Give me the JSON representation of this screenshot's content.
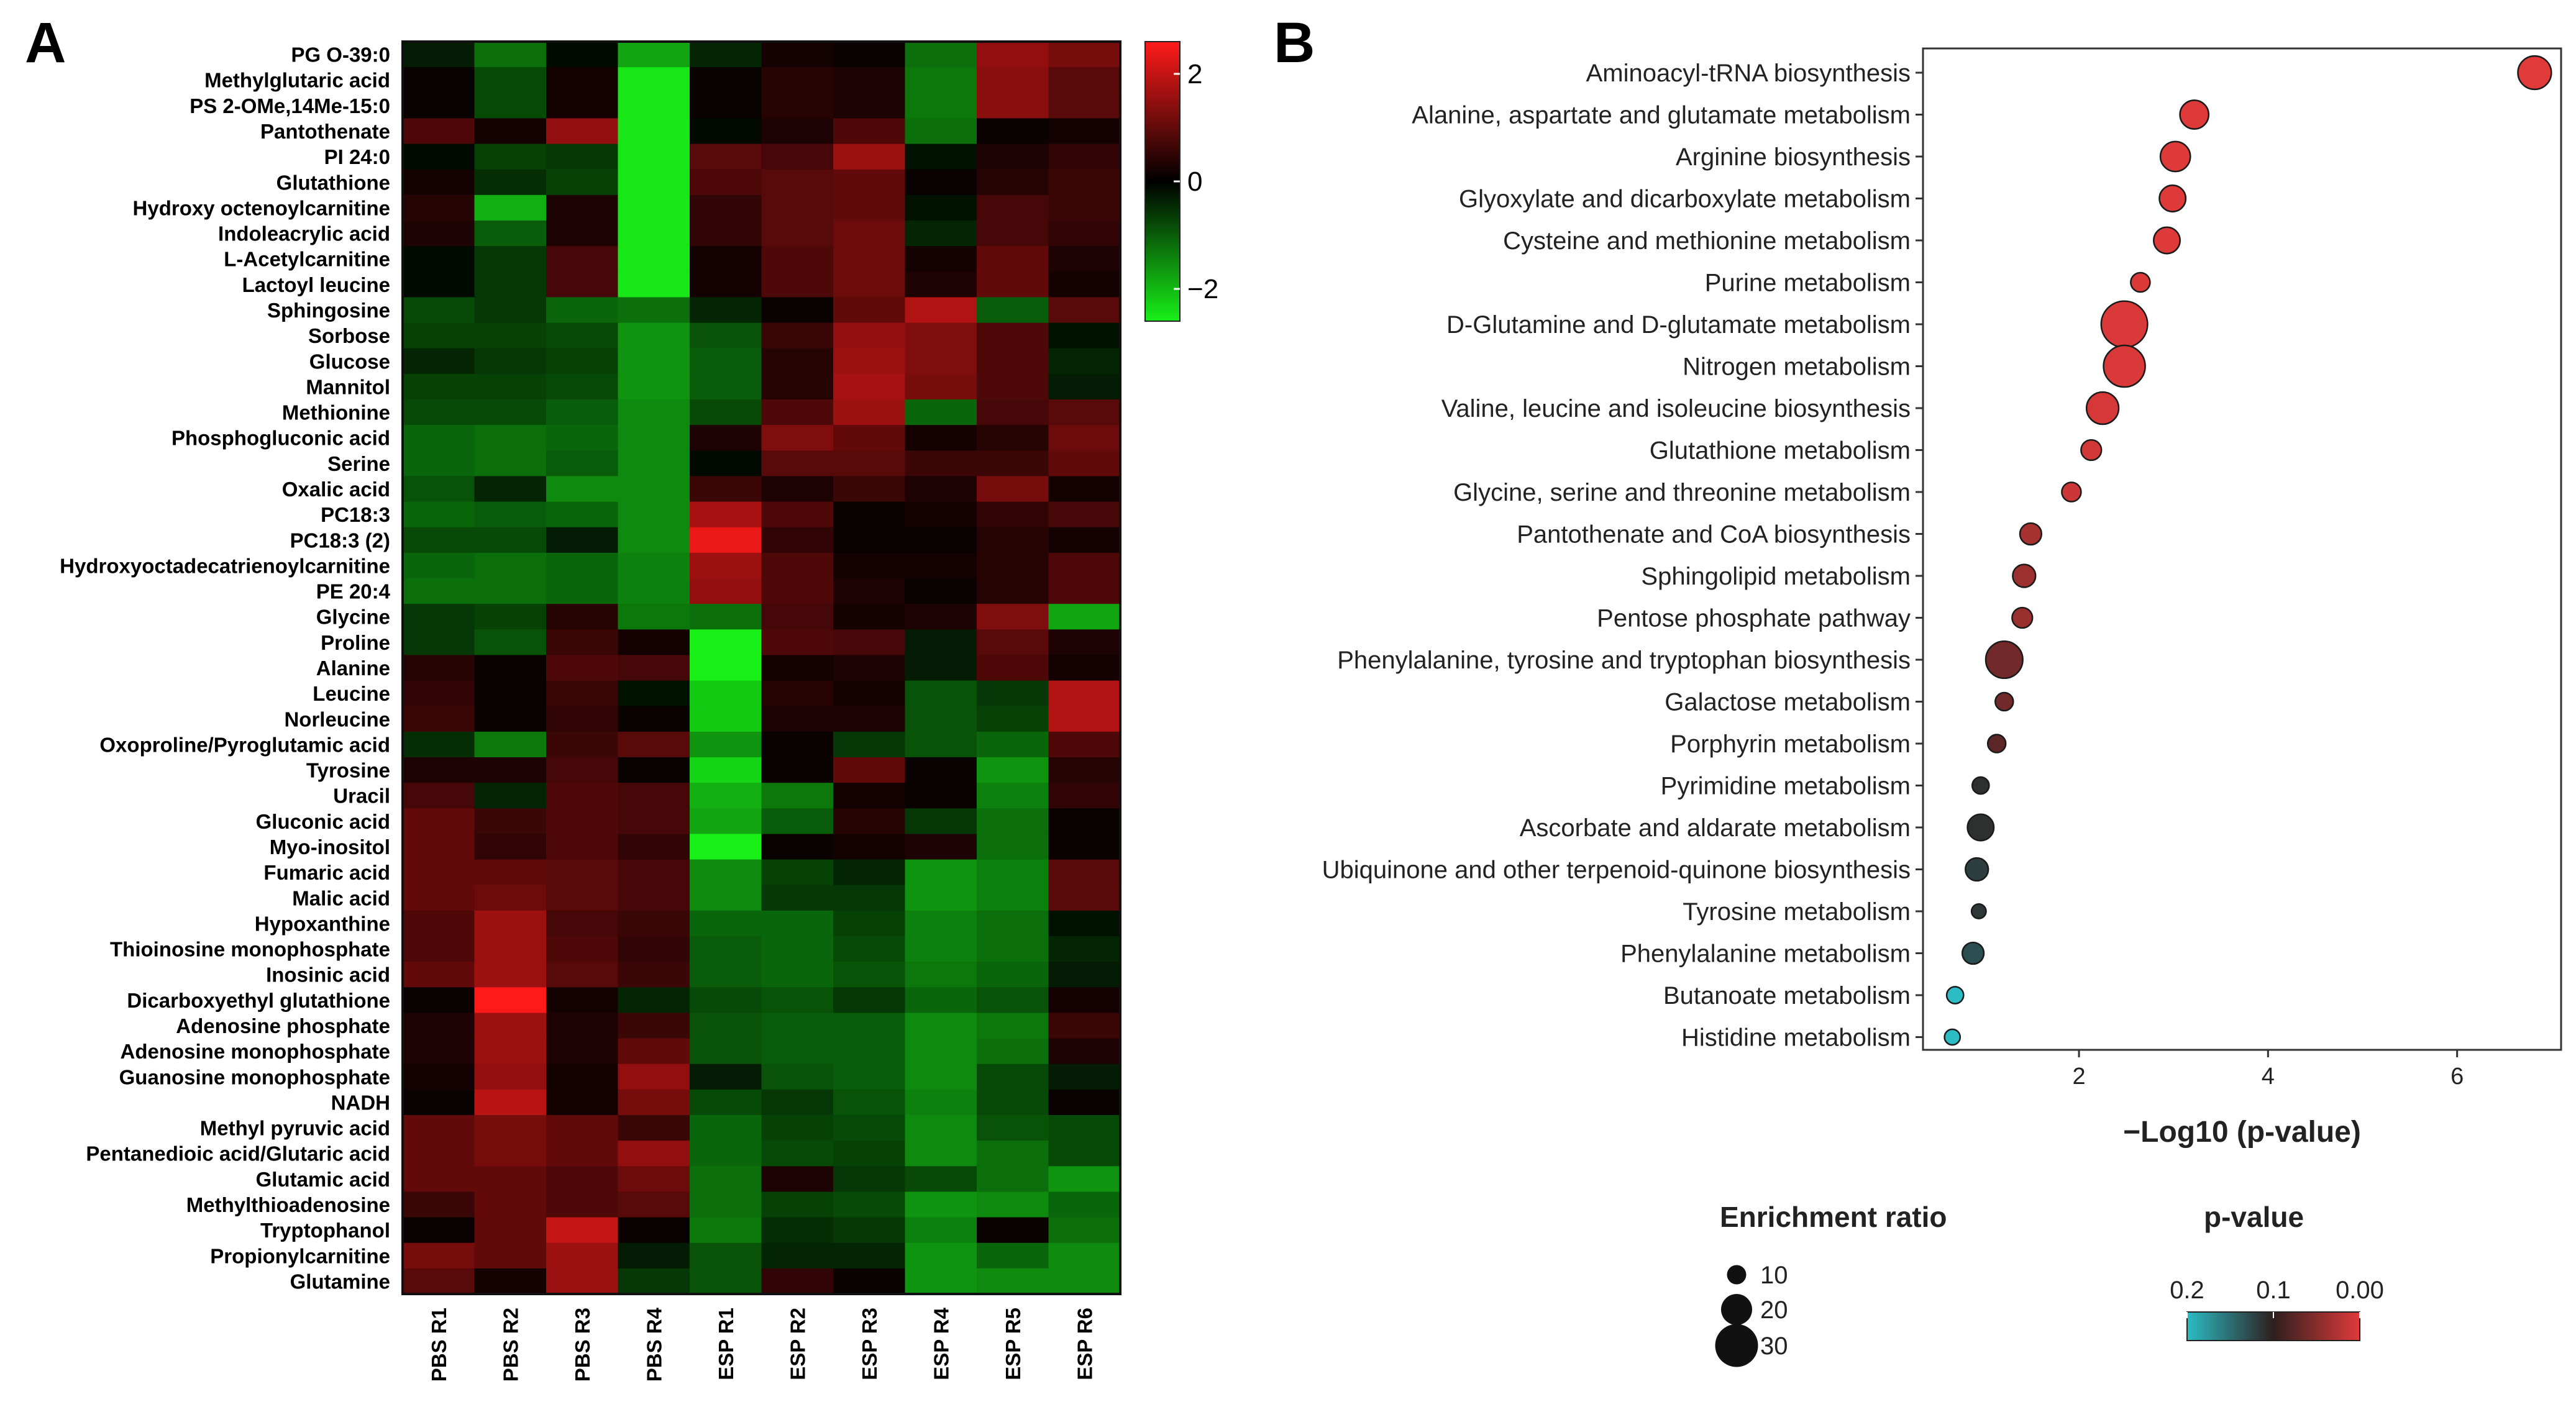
{
  "panels": {
    "a_letter": "A",
    "b_letter": "B"
  },
  "chart_data": [
    {
      "type": "heatmap",
      "title": "",
      "columns": [
        "PBS R1",
        "PBS R2",
        "PBS R3",
        "PBS R4",
        "ESP R1",
        "ESP R2",
        "ESP R3",
        "ESP R4",
        "ESP R5",
        "ESP R6"
      ],
      "rows": [
        "PG O-39:0",
        "Methylglutaric acid",
        "PS 2-OMe,14Me-15:0",
        "Pantothenate",
        "PI 24:0",
        "Glutathione",
        "Hydroxy octenoylcarnitine",
        "Indoleacrylic acid",
        "L-Acetylcarnitine",
        "Lactoyl leucine",
        "Sphingosine",
        "Sorbose",
        "Glucose",
        "Mannitol",
        "Methionine",
        "Phosphogluconic acid",
        "Serine",
        "Oxalic acid",
        "PC18:3",
        "PC18:3 (2)",
        "Hydroxyoctadecatrienoylcarnitine",
        "PE 20:4",
        "Glycine",
        "Proline",
        "Alanine",
        "Leucine",
        "Norleucine",
        "Oxoproline/Pyroglutamic acid",
        "Tyrosine",
        "Uracil",
        "Gluconic acid",
        "Myo-inositol",
        "Fumaric acid",
        "Malic acid",
        "Hypoxanthine",
        "Thioinosine monophosphate",
        "Inosinic acid",
        "Dicarboxyethyl glutathione",
        "Adenosine phosphate",
        "Adenosine monophosphate",
        "Guanosine monophosphate",
        "NADH",
        "Methyl pyruvic acid",
        "Pentanedioic acid/Glutaric acid",
        "Glutamic acid",
        "Methylthioadenosine",
        "Tryptophanol",
        "Propionylcarnitine",
        "Glutamine"
      ],
      "values": [
        [
          -0.3,
          -1.2,
          -0.1,
          -1.8,
          -0.4,
          0.2,
          0.1,
          -1.2,
          1.5,
          1.2
        ],
        [
          0.1,
          -0.8,
          0.2,
          -2.5,
          0.1,
          0.4,
          0.3,
          -1.3,
          1.4,
          0.9
        ],
        [
          0.1,
          -0.8,
          0.2,
          -2.5,
          0.1,
          0.4,
          0.3,
          -1.3,
          1.4,
          0.9
        ],
        [
          0.8,
          0.2,
          1.5,
          -2.5,
          -0.1,
          0.3,
          0.8,
          -1.2,
          0.1,
          0.2
        ],
        [
          -0.1,
          -0.7,
          -0.6,
          -2.5,
          0.9,
          0.7,
          1.6,
          -0.2,
          0.3,
          0.5
        ],
        [
          0.2,
          -0.5,
          -0.7,
          -2.5,
          0.8,
          0.9,
          1.0,
          0.1,
          0.4,
          0.6
        ],
        [
          0.4,
          -1.9,
          0.3,
          -2.5,
          0.5,
          0.9,
          1.0,
          -0.2,
          0.7,
          0.6
        ],
        [
          0.3,
          -1.0,
          0.3,
          -2.5,
          0.5,
          0.9,
          1.1,
          -0.4,
          0.7,
          0.5
        ],
        [
          -0.1,
          -0.6,
          0.7,
          -2.5,
          0.2,
          0.8,
          1.1,
          0.2,
          1.0,
          0.3
        ],
        [
          -0.1,
          -0.6,
          0.7,
          -2.5,
          0.2,
          0.8,
          1.1,
          0.3,
          1.0,
          0.2
        ],
        [
          -0.8,
          -0.6,
          -1.1,
          -1.2,
          -0.4,
          0.1,
          1.0,
          1.8,
          -1.0,
          0.9
        ],
        [
          -0.7,
          -0.7,
          -0.8,
          -1.6,
          -0.9,
          0.6,
          1.5,
          1.3,
          0.8,
          -0.2
        ],
        [
          -0.4,
          -0.6,
          -0.7,
          -1.6,
          -1.0,
          0.4,
          1.6,
          1.3,
          0.8,
          -0.4
        ],
        [
          -0.7,
          -0.7,
          -0.8,
          -1.6,
          -1.0,
          0.4,
          1.7,
          1.2,
          0.8,
          -0.3
        ],
        [
          -0.8,
          -0.8,
          -1.0,
          -1.5,
          -0.8,
          0.8,
          1.6,
          -1.1,
          0.7,
          0.9
        ],
        [
          -1.1,
          -1.2,
          -1.1,
          -1.5,
          0.3,
          1.3,
          1.0,
          0.2,
          0.4,
          1.1
        ],
        [
          -1.1,
          -1.2,
          -1.0,
          -1.5,
          -0.1,
          0.9,
          0.9,
          0.6,
          0.6,
          1.0
        ],
        [
          -0.9,
          -0.4,
          -1.5,
          -1.5,
          0.6,
          0.3,
          0.6,
          0.3,
          1.2,
          0.2
        ],
        [
          -1.1,
          -1.0,
          -1.1,
          -1.5,
          1.7,
          0.8,
          0.1,
          0.2,
          0.5,
          0.7
        ],
        [
          -0.8,
          -0.8,
          -0.3,
          -1.5,
          2.4,
          0.5,
          0.1,
          0.1,
          0.4,
          0.2
        ],
        [
          -1.1,
          -1.2,
          -1.1,
          -1.4,
          1.6,
          0.8,
          0.2,
          0.2,
          0.4,
          0.8
        ],
        [
          -1.2,
          -1.2,
          -1.1,
          -1.4,
          1.5,
          0.8,
          0.3,
          0.1,
          0.4,
          0.8
        ],
        [
          -0.6,
          -0.7,
          0.4,
          -1.3,
          -1.2,
          0.7,
          0.2,
          0.3,
          1.3,
          -1.8
        ],
        [
          -0.6,
          -0.9,
          0.6,
          0.2,
          -2.6,
          0.8,
          0.7,
          -0.3,
          0.9,
          0.3
        ],
        [
          0.4,
          0.1,
          0.8,
          0.7,
          -2.6,
          0.2,
          0.3,
          -0.3,
          0.8,
          0.2
        ],
        [
          0.5,
          0.1,
          0.6,
          -0.2,
          -2.2,
          0.4,
          0.2,
          -0.9,
          -0.6,
          1.8
        ],
        [
          0.6,
          0.1,
          0.5,
          0.1,
          -2.2,
          0.3,
          0.3,
          -0.9,
          -0.7,
          1.8
        ],
        [
          -0.5,
          -1.3,
          0.6,
          0.9,
          -1.6,
          0.1,
          -0.6,
          -0.9,
          -1.1,
          0.8
        ],
        [
          0.3,
          0.3,
          0.7,
          0.1,
          -2.3,
          0.1,
          1.0,
          0.1,
          -1.6,
          0.4
        ],
        [
          0.7,
          -0.4,
          0.8,
          0.7,
          -1.9,
          -1.3,
          0.2,
          0.1,
          -1.4,
          0.5
        ],
        [
          1.0,
          0.6,
          0.8,
          0.7,
          -1.8,
          -1.0,
          0.4,
          -0.6,
          -1.2,
          0.1
        ],
        [
          1.0,
          0.5,
          0.8,
          0.5,
          -2.6,
          0.1,
          0.2,
          0.3,
          -1.2,
          0.1
        ],
        [
          1.0,
          1.0,
          0.9,
          0.7,
          -1.5,
          -0.7,
          -0.4,
          -1.6,
          -1.4,
          0.9
        ],
        [
          1.0,
          1.1,
          0.9,
          0.7,
          -1.5,
          -0.6,
          -0.6,
          -1.6,
          -1.4,
          0.9
        ],
        [
          0.8,
          1.6,
          0.7,
          0.6,
          -1.1,
          -1.1,
          -0.7,
          -1.4,
          -1.2,
          -0.2
        ],
        [
          0.8,
          1.6,
          0.8,
          0.5,
          -1.0,
          -1.1,
          -0.8,
          -1.4,
          -1.2,
          -0.4
        ],
        [
          1.0,
          1.6,
          0.9,
          0.6,
          -1.0,
          -1.1,
          -0.9,
          -1.3,
          -1.1,
          -0.3
        ],
        [
          0.1,
          2.6,
          0.2,
          -0.4,
          -0.8,
          -0.9,
          -0.6,
          -1.1,
          -0.9,
          0.2
        ],
        [
          0.3,
          1.6,
          0.3,
          0.6,
          -0.9,
          -1.0,
          -1.0,
          -1.5,
          -1.3,
          0.6
        ],
        [
          0.3,
          1.6,
          0.3,
          1.0,
          -0.9,
          -1.0,
          -1.0,
          -1.5,
          -1.2,
          0.3
        ],
        [
          0.2,
          1.5,
          0.2,
          1.5,
          -0.3,
          -0.9,
          -1.0,
          -1.5,
          -0.8,
          -0.3
        ],
        [
          0.1,
          1.9,
          0.2,
          1.2,
          -0.8,
          -0.6,
          -0.9,
          -1.4,
          -0.8,
          0.1
        ],
        [
          1.0,
          1.2,
          1.0,
          0.6,
          -1.1,
          -0.7,
          -0.8,
          -1.5,
          -0.9,
          -0.8
        ],
        [
          1.0,
          1.2,
          1.0,
          1.5,
          -1.1,
          -0.8,
          -0.7,
          -1.5,
          -1.2,
          -0.8
        ],
        [
          1.0,
          1.0,
          0.8,
          1.1,
          -1.2,
          0.3,
          -0.6,
          -0.8,
          -1.2,
          -1.6
        ],
        [
          0.6,
          1.0,
          0.8,
          0.9,
          -1.2,
          -0.7,
          -0.8,
          -1.6,
          -1.5,
          -1.1
        ],
        [
          0.1,
          1.0,
          2.0,
          0.1,
          -1.3,
          -0.5,
          -0.6,
          -1.4,
          0.1,
          -1.2
        ],
        [
          1.2,
          1.0,
          1.6,
          -0.3,
          -0.9,
          -0.4,
          -0.4,
          -1.6,
          -1.1,
          -1.5
        ],
        [
          0.9,
          0.2,
          1.6,
          -0.6,
          -0.9,
          0.5,
          0.1,
          -1.6,
          -1.5,
          -1.5
        ]
      ],
      "color_scale": {
        "min": -2.6,
        "max": 2.6,
        "ticks": [
          2,
          0,
          -2
        ],
        "tick_labels": [
          "2",
          "0",
          "−2"
        ],
        "low_color": "#18f018",
        "mid_color": "#000000",
        "high_color": "#ff1a1a"
      }
    },
    {
      "type": "scatter",
      "title": "",
      "xlabel": "−Log10 (p-value)",
      "ylabel": "",
      "xlim": [
        0.35,
        7.1
      ],
      "x_ticks": [
        2,
        4,
        6
      ],
      "x_tick_labels": [
        "2",
        "4",
        "6"
      ],
      "categories": [
        "Aminoacyl-tRNA biosynthesis",
        "Alanine, aspartate and glutamate metabolism",
        "Arginine biosynthesis",
        "Glyoxylate and dicarboxylate metabolism",
        "Cysteine and methionine metabolism",
        "Purine metabolism",
        "D-Glutamine and D-glutamate metabolism",
        "Nitrogen metabolism",
        "Valine, leucine and isoleucine biosynthesis",
        "Glutathione metabolism",
        "Glycine, serine and threonine metabolism",
        "Pantothenate and CoA biosynthesis",
        "Sphingolipid metabolism",
        "Pentose phosphate pathway",
        "Phenylalanine, tyrosine and tryptophan biosynthesis",
        "Galactose metabolism",
        "Porphyrin  metabolism",
        "Pyrimidine metabolism",
        "Ascorbate and aldarate metabolism",
        "Ubiquinone and other terpenoid-quinone biosynthesis",
        "Tyrosine metabolism",
        "Phenylalanine metabolism",
        "Butanoate metabolism",
        "Histidine metabolism"
      ],
      "x": [
        6.82,
        3.22,
        3.02,
        2.99,
        2.93,
        2.65,
        2.48,
        2.48,
        2.25,
        2.13,
        1.92,
        1.49,
        1.42,
        1.4,
        1.21,
        1.21,
        1.13,
        0.96,
        0.96,
        0.92,
        0.94,
        0.88,
        0.69,
        0.66
      ],
      "enrichment_ratio": [
        22,
        18,
        19,
        16,
        16,
        10,
        33,
        29,
        21,
        11,
        10,
        12,
        13,
        11,
        25,
        9,
        9,
        8,
        16,
        13,
        6,
        12,
        8,
        7
      ],
      "p_value": [
        2e-07,
        0.0006,
        0.001,
        0.001,
        0.0012,
        0.0022,
        0.0033,
        0.0033,
        0.0056,
        0.0074,
        0.012,
        0.032,
        0.038,
        0.04,
        0.062,
        0.062,
        0.074,
        0.11,
        0.11,
        0.12,
        0.115,
        0.13,
        0.2,
        0.22
      ],
      "size_legend": {
        "title": "Enrichment ratio",
        "labels": [
          "10",
          "20",
          "30"
        ],
        "values": [
          10,
          20,
          30
        ]
      },
      "color_legend": {
        "title": "p-value",
        "labels": [
          "0.2",
          "0.1",
          "0.00"
        ],
        "low_p_color": "#e03a3a",
        "mid_p_color": "#2e1f1f",
        "high_p_color": "#2bbcc4"
      }
    }
  ]
}
